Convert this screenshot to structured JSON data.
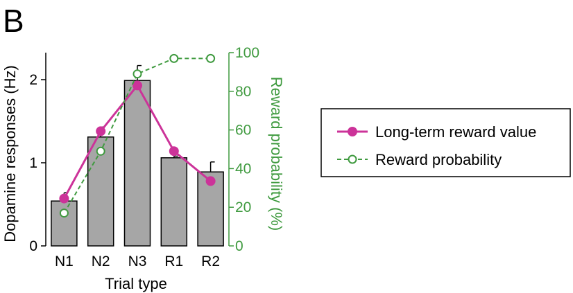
{
  "panel_label": "B",
  "chart_data": {
    "type": "bar",
    "categories": [
      "N1",
      "N2",
      "N3",
      "R1",
      "R2"
    ],
    "xlabel": "Trial type",
    "ylabel": "Dopamine responses (Hz)",
    "ylim": [
      0,
      2.3
    ],
    "yticks": [
      0,
      1,
      2
    ],
    "y2label": "Reward probability (%)",
    "y2lim": [
      0,
      100
    ],
    "y2ticks": [
      0,
      20,
      40,
      60,
      80,
      100
    ],
    "bars": {
      "values": [
        0.54,
        1.31,
        1.99,
        1.06,
        0.89
      ],
      "errors": [
        0.1,
        0.12,
        0.18,
        0.02,
        0.12
      ],
      "color": "#a6a6a6"
    },
    "series": [
      {
        "name": "Long-term reward value",
        "axis": "left",
        "values": [
          0.57,
          1.38,
          1.93,
          1.14,
          0.78
        ],
        "color": "#cc3399",
        "line": "solid",
        "marker": "filled-circle"
      },
      {
        "name": "Reward probability",
        "axis": "right",
        "values": [
          17,
          49,
          89,
          97,
          97
        ],
        "color": "#3f9a3f",
        "line": "dashed",
        "marker": "open-circle"
      }
    ],
    "legend_position": "right"
  }
}
